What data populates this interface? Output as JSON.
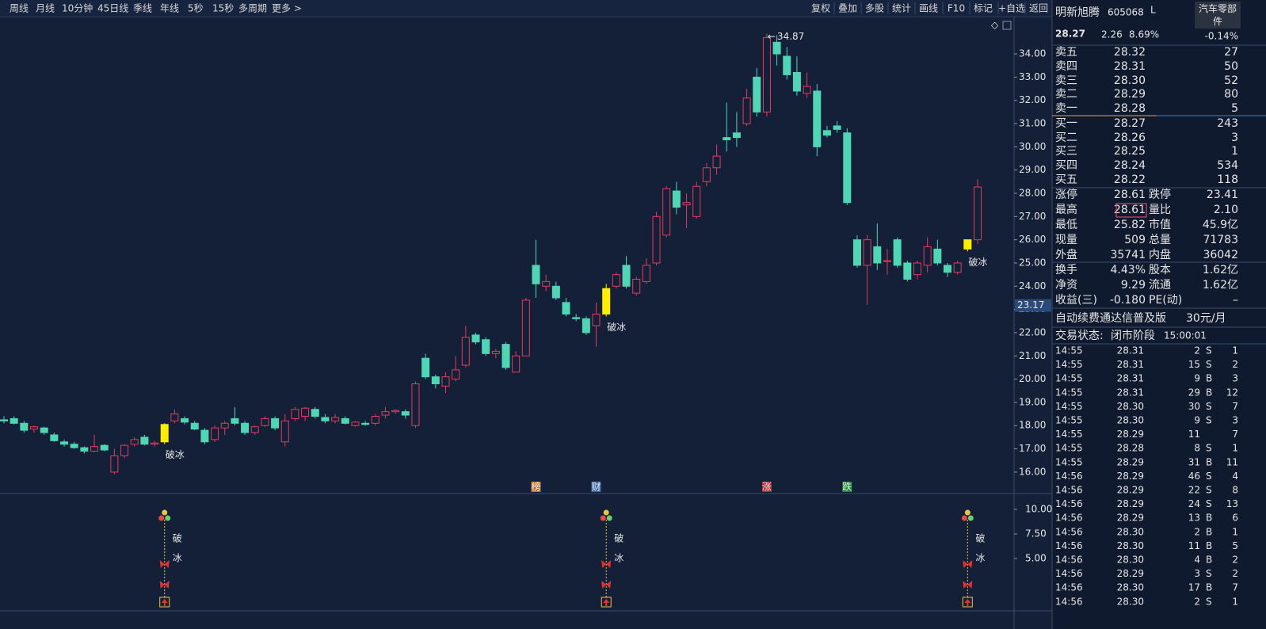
{
  "toolbar": {
    "left": [
      "周线",
      "月线",
      "10分钟",
      "45日线",
      "季线",
      "年线",
      "5秒",
      "15秒",
      "多周期",
      "更多 >"
    ],
    "right": [
      "复权",
      "叠加",
      "多股",
      "统计",
      "画线",
      "F10",
      "标记",
      "+自选",
      "返回"
    ]
  },
  "chart_data": {
    "type": "candlestick",
    "up_color": "#e8385c",
    "down_color": "#4fd6b4",
    "signal_color": "#ffee00",
    "ylim": [
      15.11,
      35.57
    ],
    "yticks": [
      {
        "value": 16,
        "label": "16.00"
      },
      {
        "value": 17,
        "label": "17.00"
      },
      {
        "value": 18,
        "label": "18.00"
      },
      {
        "value": 19,
        "label": "19.00"
      },
      {
        "value": 20,
        "label": "20.00"
      },
      {
        "value": 21,
        "label": "21.00"
      },
      {
        "value": 22,
        "label": "22.00"
      },
      {
        "value": 23,
        "label": "23.00"
      },
      {
        "value": 24,
        "label": "24.00"
      },
      {
        "value": 25,
        "label": "25.00"
      },
      {
        "value": 26,
        "label": "26.00"
      },
      {
        "value": 27,
        "label": "27.00"
      },
      {
        "value": 28,
        "label": "28.00"
      },
      {
        "value": 29,
        "label": "29.00"
      },
      {
        "value": 30,
        "label": "30.00"
      },
      {
        "value": 31,
        "label": "31.00"
      },
      {
        "value": 32,
        "label": "32.00"
      },
      {
        "value": 33,
        "label": "33.00"
      },
      {
        "value": 34,
        "label": "34.00"
      }
    ],
    "cursor_price": 23.17,
    "candles": [
      [
        18.25,
        18.4,
        18.1,
        18.2
      ],
      [
        18.3,
        18.4,
        18.05,
        18.1
      ],
      [
        18.1,
        18.2,
        17.7,
        17.8
      ],
      [
        17.85,
        18.0,
        17.7,
        17.95
      ],
      [
        17.9,
        17.95,
        17.6,
        17.7
      ],
      [
        17.6,
        17.7,
        17.3,
        17.35
      ],
      [
        17.3,
        17.4,
        17.1,
        17.2
      ],
      [
        17.2,
        17.3,
        17.0,
        17.05
      ],
      [
        17.05,
        17.1,
        16.8,
        16.9
      ],
      [
        16.9,
        17.6,
        16.85,
        17.1
      ],
      [
        17.15,
        17.2,
        16.9,
        16.95
      ],
      [
        16.0,
        17.0,
        15.9,
        16.7
      ],
      [
        16.7,
        17.2,
        16.6,
        17.15
      ],
      [
        17.2,
        17.5,
        17.1,
        17.4
      ],
      [
        17.5,
        17.6,
        17.15,
        17.2
      ],
      [
        17.2,
        17.35,
        17.1,
        17.25
      ],
      [
        17.3,
        18.1,
        17.2,
        18.05
      ],
      [
        18.2,
        18.7,
        18.1,
        18.5
      ],
      [
        18.3,
        18.4,
        18.05,
        18.15
      ],
      [
        18.1,
        18.2,
        17.8,
        17.85
      ],
      [
        17.8,
        17.9,
        17.2,
        17.3
      ],
      [
        17.4,
        18.0,
        17.3,
        17.9
      ],
      [
        17.9,
        18.2,
        17.6,
        18.1
      ],
      [
        18.3,
        18.8,
        18.0,
        18.1
      ],
      [
        18.1,
        18.2,
        17.6,
        17.7
      ],
      [
        17.7,
        18.0,
        17.6,
        17.95
      ],
      [
        18.0,
        18.4,
        17.95,
        18.3
      ],
      [
        18.3,
        18.4,
        17.8,
        17.9
      ],
      [
        17.3,
        18.5,
        17.1,
        18.2
      ],
      [
        18.3,
        18.8,
        18.2,
        18.7
      ],
      [
        18.4,
        18.8,
        18.2,
        18.75
      ],
      [
        18.7,
        18.8,
        18.3,
        18.4
      ],
      [
        18.35,
        18.5,
        18.1,
        18.2
      ],
      [
        18.2,
        18.5,
        18.1,
        18.35
      ],
      [
        18.3,
        18.4,
        18.05,
        18.1
      ],
      [
        18.0,
        18.2,
        17.95,
        18.15
      ],
      [
        18.1,
        18.2,
        18.0,
        18.05
      ],
      [
        18.1,
        18.5,
        18.0,
        18.4
      ],
      [
        18.45,
        18.8,
        18.3,
        18.6
      ],
      [
        18.6,
        18.7,
        18.5,
        18.65
      ],
      [
        18.6,
        18.7,
        18.3,
        18.45
      ],
      [
        18.0,
        19.9,
        17.9,
        19.8
      ],
      [
        20.9,
        21.1,
        20.0,
        20.1
      ],
      [
        20.1,
        20.2,
        19.6,
        19.8
      ],
      [
        19.7,
        20.3,
        19.4,
        20.1
      ],
      [
        20.0,
        21.0,
        19.9,
        20.4
      ],
      [
        20.6,
        22.3,
        20.5,
        21.8
      ],
      [
        21.9,
        22.0,
        21.5,
        21.6
      ],
      [
        21.7,
        21.8,
        21.0,
        21.1
      ],
      [
        21.1,
        21.3,
        20.9,
        21.2
      ],
      [
        21.5,
        21.6,
        20.4,
        20.5
      ],
      [
        20.3,
        21.2,
        20.3,
        21.0
      ],
      [
        21.0,
        23.5,
        21.0,
        23.4
      ],
      [
        24.9,
        26.0,
        23.5,
        24.1
      ],
      [
        24.0,
        24.5,
        23.8,
        24.2
      ],
      [
        24.0,
        24.2,
        23.4,
        23.5
      ],
      [
        23.3,
        23.5,
        22.7,
        22.8
      ],
      [
        22.65,
        22.8,
        22.5,
        22.6
      ],
      [
        22.6,
        22.7,
        21.9,
        22.0
      ],
      [
        22.3,
        23.3,
        21.4,
        22.8
      ],
      [
        22.8,
        24.1,
        22.7,
        23.9
      ],
      [
        24.0,
        24.6,
        23.9,
        24.5
      ],
      [
        24.9,
        25.3,
        23.9,
        24.0
      ],
      [
        23.7,
        24.4,
        23.6,
        24.3
      ],
      [
        24.2,
        25.2,
        24.1,
        24.9
      ],
      [
        25.0,
        27.2,
        24.9,
        27.0
      ],
      [
        26.2,
        28.3,
        26.1,
        28.2
      ],
      [
        28.1,
        28.5,
        27.1,
        27.4
      ],
      [
        27.5,
        28.0,
        26.5,
        27.6
      ],
      [
        27.0,
        28.5,
        26.9,
        28.3
      ],
      [
        28.5,
        29.3,
        28.3,
        29.1
      ],
      [
        29.1,
        30.1,
        28.8,
        29.6
      ],
      [
        30.4,
        31.9,
        29.8,
        30.3
      ],
      [
        30.6,
        31.5,
        30.0,
        30.4
      ],
      [
        31.0,
        32.5,
        30.9,
        32.1
      ],
      [
        33.0,
        33.4,
        31.3,
        31.5
      ],
      [
        31.5,
        34.87,
        31.3,
        34.7
      ],
      [
        34.5,
        34.8,
        33.5,
        34.0
      ],
      [
        33.9,
        34.3,
        32.9,
        33.1
      ],
      [
        33.2,
        33.9,
        32.2,
        32.4
      ],
      [
        32.3,
        33.2,
        32.1,
        32.6
      ],
      [
        32.4,
        32.7,
        29.6,
        30.0
      ],
      [
        30.7,
        30.9,
        30.4,
        30.5
      ],
      [
        30.9,
        31.1,
        30.6,
        30.75
      ],
      [
        30.6,
        30.8,
        27.5,
        27.6
      ],
      [
        26.0,
        26.2,
        24.8,
        24.9
      ],
      [
        24.9,
        26.2,
        23.2,
        26.0
      ],
      [
        25.7,
        26.7,
        24.7,
        25.0
      ],
      [
        25.1,
        25.6,
        24.5,
        25.1
      ],
      [
        26.0,
        26.1,
        24.8,
        24.9
      ],
      [
        25.0,
        25.1,
        24.2,
        24.3
      ],
      [
        24.5,
        25.1,
        24.3,
        25.0
      ],
      [
        24.9,
        26.1,
        24.6,
        25.7
      ],
      [
        25.6,
        26.0,
        24.9,
        25.0
      ],
      [
        24.9,
        25.0,
        24.4,
        24.6
      ],
      [
        24.6,
        25.1,
        24.5,
        25.0
      ],
      [
        25.6,
        26.0,
        25.5,
        26.0
      ],
      [
        26.0,
        28.61,
        25.82,
        28.27
      ]
    ],
    "signals": [
      null,
      null,
      null,
      null,
      null,
      null,
      null,
      null,
      null,
      null,
      null,
      null,
      null,
      null,
      null,
      null,
      "破冰",
      null,
      null,
      null,
      null,
      null,
      null,
      null,
      null,
      null,
      null,
      null,
      null,
      null,
      null,
      null,
      null,
      null,
      null,
      null,
      null,
      null,
      null,
      null,
      null,
      null,
      null,
      null,
      null,
      null,
      null,
      null,
      null,
      null,
      null,
      null,
      null,
      null,
      null,
      null,
      null,
      null,
      null,
      null,
      "破冰",
      null,
      null,
      null,
      null,
      null,
      null,
      null,
      null,
      null,
      null,
      null,
      null,
      null,
      null,
      null,
      null,
      null,
      null,
      null,
      null,
      null,
      null,
      null,
      null,
      null,
      null,
      null,
      null,
      null,
      null,
      null,
      null,
      null,
      null,
      null,
      "破冰",
      null
    ],
    "events": [
      null,
      null,
      null,
      null,
      null,
      null,
      null,
      null,
      null,
      null,
      null,
      null,
      null,
      null,
      null,
      null,
      null,
      null,
      null,
      null,
      null,
      null,
      null,
      null,
      null,
      null,
      null,
      null,
      null,
      null,
      null,
      null,
      null,
      null,
      null,
      null,
      null,
      null,
      null,
      null,
      null,
      null,
      null,
      null,
      null,
      null,
      null,
      null,
      null,
      null,
      null,
      null,
      null,
      {
        "label": "榜",
        "color": "#c8752a"
      },
      null,
      null,
      null,
      null,
      null,
      {
        "label": "财",
        "color": "#3f6fa8"
      },
      null,
      null,
      null,
      null,
      null,
      null,
      null,
      null,
      null,
      null,
      null,
      null,
      null,
      null,
      null,
      null,
      {
        "label": "涨",
        "color": "#b3263c"
      },
      null,
      null,
      null,
      null,
      null,
      null,
      null,
      {
        "label": "跌",
        "color": "#1f8a3a"
      },
      null,
      null,
      null,
      null,
      null,
      null,
      null,
      null,
      null,
      null,
      null,
      null,
      null
    ]
  },
  "indicator": {
    "ylim": [
      -0.24,
      11.53
    ],
    "yticks": [
      {
        "value": 10,
        "label": "10.00"
      },
      {
        "value": 7.5,
        "label": "7.50"
      },
      {
        "value": 5,
        "label": "5.00"
      }
    ],
    "text": [
      "破",
      "冰"
    ]
  },
  "quote": {
    "name": "明新旭腾",
    "code": "605068",
    "flag": "L",
    "sector": "汽车零部件",
    "sector_change": "-0.14%",
    "price": "28.27",
    "change": "2.26",
    "change_pct": "8.69%",
    "book": [
      [
        "卖五",
        "28.32",
        27
      ],
      [
        "卖四",
        "28.31",
        50
      ],
      [
        "卖三",
        "28.30",
        52
      ],
      [
        "卖二",
        "28.29",
        80
      ],
      [
        "卖一",
        "28.28",
        5
      ],
      [
        "买一",
        "28.27",
        243
      ],
      [
        "买二",
        "28.26",
        3
      ],
      [
        "买三",
        "28.25",
        1
      ],
      [
        "买四",
        "28.24",
        534
      ],
      [
        "买五",
        "28.22",
        118
      ]
    ],
    "stats": [
      [
        {
          "label": "涨停",
          "value": "28.61",
          "color": "#ff4d6d"
        },
        {
          "label": "跌停",
          "value": "23.41",
          "color": "#4fd6b4"
        }
      ],
      [
        {
          "label": "最高",
          "value": "28.61",
          "color": "#ff4d6d"
        },
        {
          "label": "量比",
          "value": "2.10",
          "color": "#ff4d6d"
        }
      ],
      [
        {
          "label": "最低",
          "value": "25.82",
          "color": "#4fd6b4"
        },
        {
          "label": "市值",
          "value": "45.9亿",
          "color": "#e6e6e6"
        }
      ],
      [
        {
          "label": "现量",
          "value": "509",
          "color": "#c040e0"
        },
        {
          "label": "总量",
          "value": "71783",
          "color": "#e6e6e6"
        }
      ],
      [
        {
          "label": "外盘",
          "value": "35741",
          "color": "#ff4d6d"
        },
        {
          "label": "内盘",
          "value": "36042",
          "color": "#4fd6b4"
        }
      ],
      [
        {
          "label": "换手",
          "value": "4.43%",
          "color": "#e6e6e6"
        },
        {
          "label": "股本",
          "value": "1.62亿",
          "color": "#e6e6e6"
        }
      ],
      [
        {
          "label": "净资",
          "value": "9.29",
          "color": "#e6e6e6"
        },
        {
          "label": "流通",
          "value": "1.62亿",
          "color": "#e6e6e6"
        }
      ],
      [
        {
          "label": "收益(三)",
          "value": "-0.180",
          "color": "#e6e6e6"
        },
        {
          "label": "PE(动)",
          "value": "–",
          "color": "#e6e6e6"
        }
      ]
    ],
    "banner": "自动续费通达信普及版",
    "banner_price": "30元/月",
    "status_label": "交易状态:",
    "status": "闭市阶段",
    "status_time": "15:00:01",
    "trades": [
      [
        "14:55",
        "28.31",
        2,
        "S",
        1
      ],
      [
        "14:55",
        "28.31",
        15,
        "S",
        2
      ],
      [
        "14:55",
        "28.31",
        9,
        "B",
        3
      ],
      [
        "14:55",
        "28.31",
        29,
        "B",
        12
      ],
      [
        "14:55",
        "28.30",
        30,
        "S",
        7
      ],
      [
        "14:55",
        "28.30",
        9,
        "S",
        3
      ],
      [
        "14:55",
        "28.29",
        11,
        null,
        7
      ],
      [
        "14:55",
        "28.28",
        8,
        "S",
        1
      ],
      [
        "14:55",
        "28.29",
        31,
        "B",
        11
      ],
      [
        "14:56",
        "28.29",
        46,
        "S",
        4
      ],
      [
        "14:56",
        "28.29",
        22,
        "S",
        8
      ],
      [
        "14:56",
        "28.29",
        24,
        "S",
        13
      ],
      [
        "14:56",
        "28.29",
        13,
        "B",
        6
      ],
      [
        "14:56",
        "28.30",
        2,
        "B",
        1
      ],
      [
        "14:56",
        "28.30",
        11,
        "B",
        5
      ],
      [
        "14:56",
        "28.30",
        4,
        "B",
        2
      ],
      [
        "14:56",
        "28.29",
        3,
        "S",
        2
      ],
      [
        "14:56",
        "28.30",
        17,
        "B",
        7
      ],
      [
        "14:56",
        "28.30",
        2,
        "S",
        1
      ]
    ]
  }
}
